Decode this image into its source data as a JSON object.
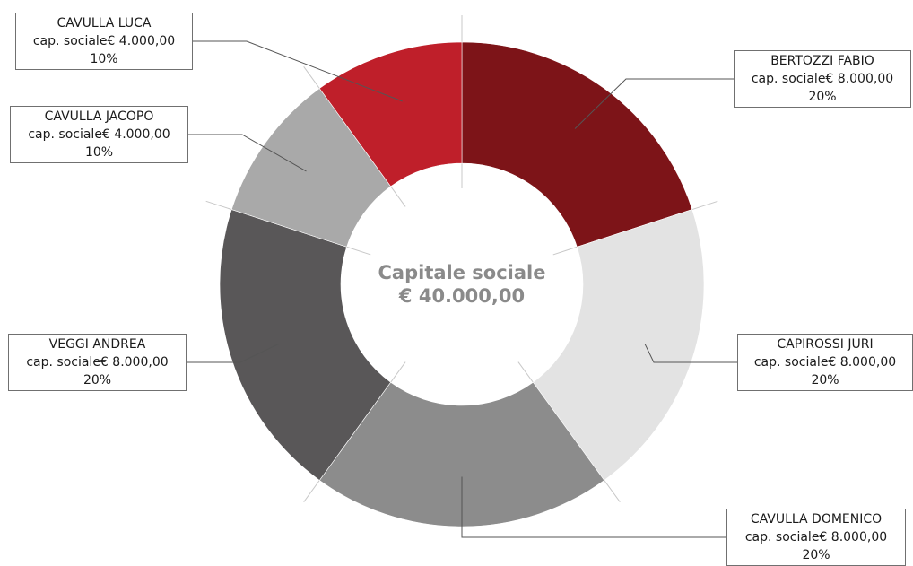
{
  "chart_data": {
    "type": "pie",
    "variant": "donut",
    "center_title": "Capitale sociale",
    "center_value": "€ 40.000,00",
    "slices": [
      {
        "name": "BERTOZZI FABIO",
        "value": 8000,
        "value_label": "cap. sociale€ 8.000,00",
        "percent_label": "20%",
        "color": "#7d1418"
      },
      {
        "name": "CAPIROSSI JURI",
        "value": 8000,
        "value_label": "cap. sociale€ 8.000,00",
        "percent_label": "20%",
        "color": "#e3e3e3"
      },
      {
        "name": "CAVULLA DOMENICO",
        "value": 8000,
        "value_label": "cap. sociale€ 8.000,00",
        "percent_label": "20%",
        "color": "#8c8c8c"
      },
      {
        "name": "VEGGI ANDREA",
        "value": 8000,
        "value_label": "cap. sociale€ 8.000,00",
        "percent_label": "20%",
        "color": "#595758"
      },
      {
        "name": "CAVULLA JACOPO",
        "value": 4000,
        "value_label": "cap. sociale€ 4.000,00",
        "percent_label": "10%",
        "color": "#a9a9a9"
      },
      {
        "name": "CAVULLA LUCA",
        "value": 4000,
        "value_label": "cap. sociale€ 4.000,00",
        "percent_label": "10%",
        "color": "#bf1f2a"
      }
    ]
  }
}
